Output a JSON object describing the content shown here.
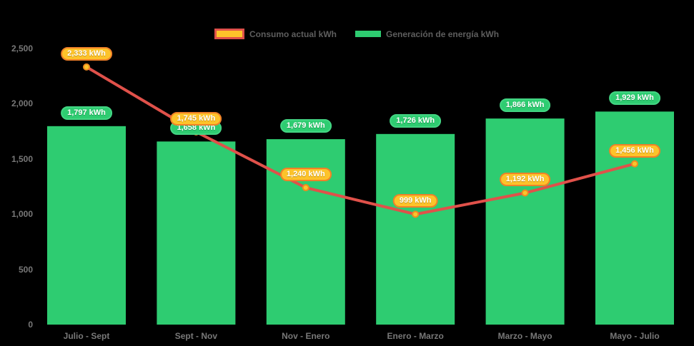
{
  "background": "#000000",
  "colors": {
    "bar": "#2ecc71",
    "bar_label_bg": "#2ecc71",
    "bar_label_border": "#43d583",
    "line": "#e0514a",
    "marker_fill": "#f9c52d",
    "marker_border": "#f08c1f",
    "line_label_bg": "#fdc32a",
    "line_label_border": "#f08128",
    "axis_text": "#787878",
    "legend_text": "#5e5e5e"
  },
  "legend": {
    "consumo_label": "Consumo actual kWh",
    "generacion_label": "Generación de energía kWh"
  },
  "chart_data": {
    "type": "bar",
    "subtype": "bar-with-line-overlay",
    "title": "",
    "xlabel": "",
    "ylabel": "",
    "categories": [
      "Julio - Sept",
      "Sept - Nov",
      "Nov - Enero",
      "Enero - Marzo",
      "Marzo - Mayo",
      "Mayo - Julio"
    ],
    "series": [
      {
        "name": "Consumo actual kWh",
        "type": "line",
        "color": "#e0514a",
        "values": [
          2333,
          1745,
          1240,
          999,
          1192,
          1456
        ],
        "labels": [
          "2,333 kWh",
          "1,745 kWh",
          "1,240 kWh",
          "999 kWh",
          "1,192 kWh",
          "1,456 kWh"
        ]
      },
      {
        "name": "Generación de energía kWh",
        "type": "bar",
        "color": "#2ecc71",
        "values": [
          1797,
          1658,
          1679,
          1726,
          1866,
          1929
        ],
        "labels": [
          "1,797 kWh",
          "1,658 kWh",
          "1,679 kWh",
          "1,726 kWh",
          "1,866 kWh",
          "1,929 kWh"
        ]
      }
    ],
    "ylim": [
      0,
      2500
    ],
    "yticks": [
      {
        "value": 0,
        "label": "0"
      },
      {
        "value": 500,
        "label": "500"
      },
      {
        "value": 1000,
        "label": "1,000"
      },
      {
        "value": 1500,
        "label": "1,500"
      },
      {
        "value": 2000,
        "label": "2,000"
      },
      {
        "value": 2500,
        "label": "2,500"
      }
    ],
    "grid": false,
    "legend_position": "top"
  }
}
